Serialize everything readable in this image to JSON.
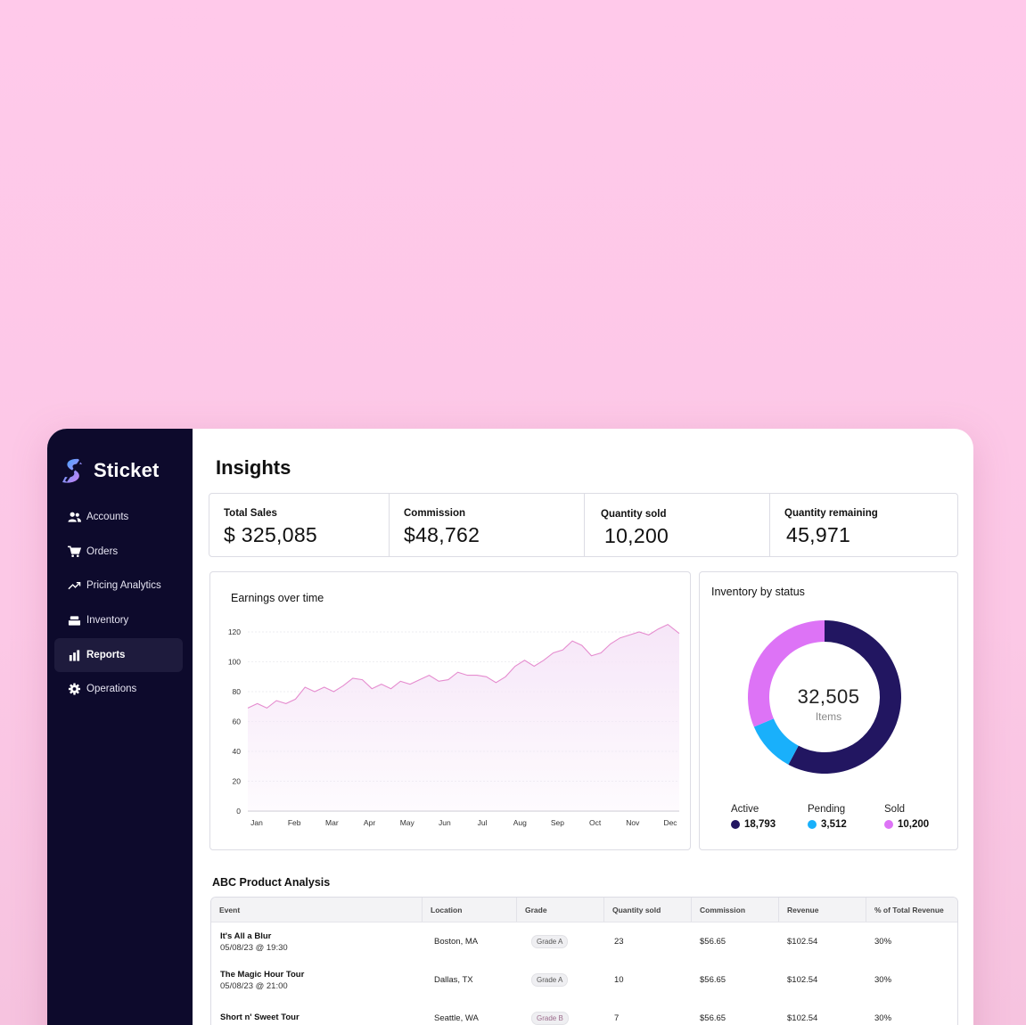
{
  "app": {
    "name": "Sticket"
  },
  "sidebar": {
    "items": [
      {
        "label": "Accounts",
        "icon": "users-icon",
        "active": false
      },
      {
        "label": "Orders",
        "icon": "cart-icon",
        "active": false
      },
      {
        "label": "Pricing Analytics",
        "icon": "trend-up-icon",
        "active": false
      },
      {
        "label": "Inventory",
        "icon": "box-icon",
        "active": false
      },
      {
        "label": "Reports",
        "icon": "bar-chart-icon",
        "active": true
      },
      {
        "label": "Operations",
        "icon": "gear-icon",
        "active": false
      }
    ]
  },
  "page": {
    "title": "Insights"
  },
  "kpis": [
    {
      "label": "Total Sales",
      "value": "$ 325,085"
    },
    {
      "label": "Commission",
      "value": "$48,762"
    },
    {
      "label": "Quantity sold",
      "value": "10,200"
    },
    {
      "label": "Quantity remaining",
      "value": "45,971"
    }
  ],
  "earnings": {
    "title": "Earnings over time",
    "chart_data": {
      "type": "area",
      "title": "Earnings over time",
      "categories": [
        "Jan",
        "Feb",
        "Mar",
        "Apr",
        "May",
        "Jun",
        "Jul",
        "Aug",
        "Sep",
        "Oct",
        "Nov",
        "Dec"
      ],
      "y_ticks": [
        "0",
        "20",
        "40",
        "60",
        "80",
        "100",
        "120"
      ],
      "ylim": [
        0,
        120
      ],
      "x": [
        0,
        0.25,
        0.5,
        0.75,
        1,
        1.25,
        1.5,
        1.75,
        2,
        2.25,
        2.5,
        2.75,
        3,
        3.25,
        3.5,
        3.75,
        4,
        4.25,
        4.5,
        4.75,
        5,
        5.25,
        5.5,
        5.75,
        6,
        6.25,
        6.5,
        6.75,
        7,
        7.25,
        7.5,
        7.75,
        8,
        8.25,
        8.5,
        8.75,
        9,
        9.25,
        9.5,
        9.75,
        10,
        10.25,
        10.5,
        10.75,
        11,
        11.3
      ],
      "values": [
        69,
        72,
        69,
        74,
        72,
        75,
        83,
        80,
        83,
        80,
        84,
        89,
        88,
        82,
        85,
        82,
        87,
        85,
        88,
        91,
        87,
        88,
        93,
        91,
        91,
        90,
        86,
        90,
        97,
        101,
        97,
        101,
        106,
        108,
        114,
        111,
        104,
        106,
        112,
        116,
        118,
        120,
        118,
        122,
        125,
        119
      ],
      "grid": true,
      "line_color": "#e58ccf",
      "fill_color": "#f6e6f8"
    }
  },
  "inventory": {
    "title": "Inventory by status",
    "total": "32,505",
    "total_label": "Items",
    "chart_data": {
      "type": "pie",
      "title": "Inventory by status",
      "categories": [
        "Active",
        "Pending",
        "Sold"
      ],
      "values": [
        18793,
        3512,
        10200
      ],
      "colors": [
        "#221661",
        "#19b0fb",
        "#dd73f6"
      ]
    },
    "legend": [
      {
        "label": "Active",
        "value": "18,793",
        "color": "#221661"
      },
      {
        "label": "Pending",
        "value": "3,512",
        "color": "#19b0fb"
      },
      {
        "label": "Sold",
        "value": "10,200",
        "color": "#dd73f6"
      }
    ]
  },
  "table": {
    "title": "ABC Product Analysis",
    "headers": [
      "Event",
      "Location",
      "Grade",
      "Quantity sold",
      "Commission",
      "Revenue",
      "% of  Total Revenue"
    ],
    "rows": [
      {
        "event": "It's All a Blur",
        "date": "05/08/23 @ 19:30",
        "location": "Boston, MA",
        "grade": "Grade A",
        "qty": "23",
        "commission": "$56.65",
        "revenue": "$102.54",
        "pct": "30%"
      },
      {
        "event": "The Magic Hour Tour",
        "date": "05/08/23 @ 21:00",
        "location": "Dallas, TX",
        "grade": "Grade A",
        "qty": "10",
        "commission": "$56.65",
        "revenue": "$102.54",
        "pct": "30%"
      },
      {
        "event": "Short n' Sweet Tour",
        "date": "",
        "location": "Seattle, WA",
        "grade": "Grade B",
        "qty": "7",
        "commission": "$56.65",
        "revenue": "$102.54",
        "pct": "30%"
      }
    ]
  }
}
